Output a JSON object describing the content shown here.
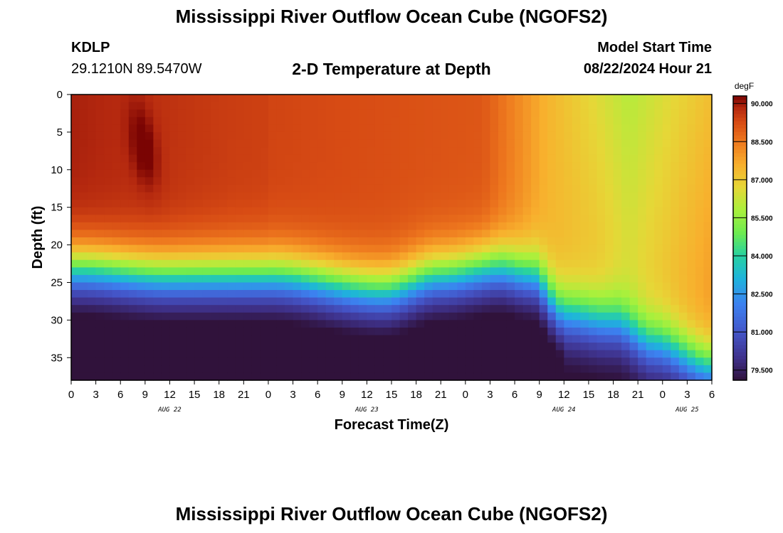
{
  "header": {
    "title": "Mississippi River Outflow Ocean Cube (NGOFS2)",
    "station": "KDLP",
    "coords": "29.1210N  89.5470W",
    "subtitle": "2-D Temperature at Depth",
    "model_start_label": "Model Start Time",
    "model_start_value": "08/22/2024 Hour 21"
  },
  "footer": {
    "title": "Mississippi River Outflow Ocean Cube (NGOFS2)"
  },
  "chart_data": {
    "type": "heatmap",
    "title": "2-D Temperature at Depth",
    "xlabel": "Forecast Time(Z)",
    "ylabel": "Depth (ft)",
    "x_unit": "hours from AUG 22 00Z",
    "xlim": [
      0,
      78
    ],
    "ylim": [
      0,
      38
    ],
    "x_ticks": [
      0,
      3,
      6,
      9,
      12,
      15,
      18,
      21,
      24,
      27,
      30,
      33,
      36,
      39,
      42,
      45,
      48,
      51,
      54,
      57,
      60,
      63,
      66,
      69,
      72,
      75,
      78
    ],
    "x_tick_labels": [
      "0",
      "3",
      "6",
      "9",
      "12",
      "15",
      "18",
      "21",
      "0",
      "3",
      "6",
      "9",
      "12",
      "15",
      "18",
      "21",
      "0",
      "3",
      "6",
      "9",
      "12",
      "15",
      "18",
      "21",
      "0",
      "3",
      "6"
    ],
    "y_ticks": [
      0,
      5,
      10,
      15,
      20,
      25,
      30,
      35
    ],
    "y_tick_labels": [
      "0",
      "5",
      "10",
      "15",
      "20",
      "25",
      "30",
      "35"
    ],
    "date_labels": [
      {
        "text": "AUG 22",
        "x": 12
      },
      {
        "text": "AUG 23",
        "x": 36
      },
      {
        "text": "AUG 24",
        "x": 60
      },
      {
        "text": "AUG 25",
        "x": 75
      }
    ],
    "colorbar": {
      "unit": "degF",
      "range": [
        79.1,
        90.3
      ],
      "ticks": [
        90.0,
        88.5,
        87.0,
        85.5,
        84.0,
        82.5,
        81.0,
        79.5
      ],
      "tick_labels": [
        "90.000",
        "88.500",
        "87.000",
        "85.500",
        "84.000",
        "82.500",
        "81.000",
        "79.500"
      ]
    },
    "description_points": {
      "warm_core": {
        "time_h": 9,
        "depth_ft": 7,
        "temp_f": 90.3
      },
      "surface_temp_day1": 89.5,
      "bottom_temp_day1": 79.2,
      "thermocline_depth_ft": [
        {
          "time_h": 0,
          "depth": 23
        },
        {
          "time_h": 12,
          "depth": 24
        },
        {
          "time_h": 24,
          "depth": 24
        },
        {
          "time_h": 38,
          "depth": 26
        },
        {
          "time_h": 45,
          "depth": 24
        },
        {
          "time_h": 52,
          "depth": 23
        },
        {
          "time_h": 56,
          "depth": 24
        },
        {
          "time_h": 60,
          "depth": 29
        },
        {
          "time_h": 66,
          "depth": 30
        },
        {
          "time_h": 71,
          "depth": 33
        },
        {
          "time_h": 78,
          "depth": 36
        }
      ],
      "surface_temp_day3_min": 86.0
    }
  }
}
